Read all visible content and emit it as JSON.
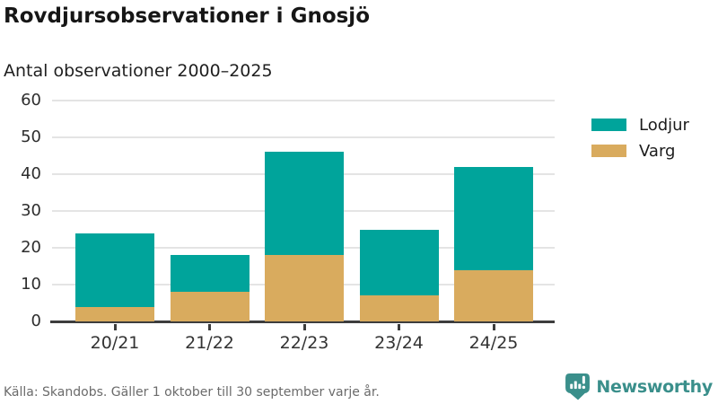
{
  "header": {
    "title": "Rovdjursobservationer i Gnosjö",
    "subtitle": "Antal observationer 2000–2025"
  },
  "chart_data": {
    "type": "bar",
    "stacked": true,
    "categories": [
      "20/21",
      "21/22",
      "22/23",
      "23/24",
      "24/25"
    ],
    "series": [
      {
        "name": "Lodjur",
        "color": "#00a49b",
        "values": [
          20,
          10,
          28,
          18,
          28
        ]
      },
      {
        "name": "Varg",
        "color": "#d9ab5e",
        "values": [
          4,
          8,
          18,
          7,
          14
        ]
      }
    ],
    "stack_totals": [
      24,
      18,
      46,
      25,
      42
    ],
    "title": "Rovdjursobservationer i Gnosjö",
    "subtitle": "Antal observationer 2000–2025",
    "xlabel": "",
    "ylabel": "",
    "ylim": [
      0,
      60
    ],
    "yticks": [
      0,
      10,
      20,
      30,
      40,
      50,
      60
    ],
    "grid": true,
    "legend_position": "right",
    "stack_order_bottom_to_top": [
      "Varg",
      "Lodjur"
    ]
  },
  "legend": {
    "items": [
      {
        "label": "Lodjur",
        "color": "#00a49b"
      },
      {
        "label": "Varg",
        "color": "#d9ab5e"
      }
    ]
  },
  "footer": {
    "source": "Källa: Skandobs. Gäller 1 oktober till 30 september varje år.",
    "brand": "Newsworthy"
  },
  "colors": {
    "lodjur_teal": "#00a49b",
    "varg_tan": "#d9ab5e",
    "brand_teal": "#3a8f8b",
    "axis": "#3d3d3d",
    "gridline": "#e4e4e4",
    "title_text": "#161616",
    "source_text": "#6b6b6b"
  },
  "icons": {
    "brand_logo": "newsworthy-speech-bubble-barchart-icon"
  }
}
